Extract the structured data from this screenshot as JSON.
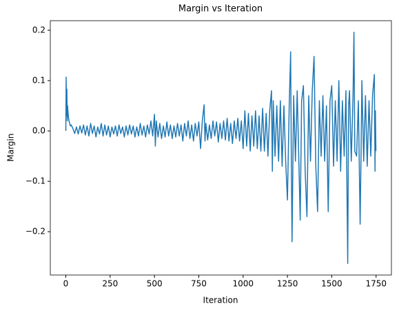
{
  "chart_data": {
    "type": "line",
    "title": "Margin vs Iteration",
    "x_label": "Iteration",
    "y_label": "Margin",
    "x": [
      0,
      2,
      4,
      6,
      8,
      10,
      14,
      18,
      22,
      26,
      30,
      40,
      50,
      60,
      70,
      80,
      90,
      100,
      110,
      120,
      130,
      140,
      150,
      160,
      170,
      180,
      190,
      200,
      210,
      220,
      230,
      240,
      250,
      260,
      270,
      280,
      290,
      300,
      310,
      320,
      330,
      340,
      350,
      360,
      370,
      380,
      390,
      400,
      410,
      420,
      430,
      440,
      450,
      460,
      470,
      480,
      490,
      500,
      505,
      510,
      520,
      530,
      540,
      550,
      560,
      570,
      580,
      590,
      600,
      610,
      620,
      630,
      640,
      650,
      660,
      670,
      680,
      690,
      700,
      710,
      720,
      730,
      740,
      750,
      760,
      770,
      780,
      785,
      790,
      800,
      810,
      820,
      830,
      840,
      850,
      860,
      870,
      880,
      890,
      900,
      910,
      920,
      930,
      940,
      950,
      960,
      970,
      980,
      990,
      1000,
      1010,
      1020,
      1030,
      1040,
      1050,
      1060,
      1070,
      1080,
      1090,
      1100,
      1110,
      1120,
      1130,
      1140,
      1150,
      1160,
      1165,
      1170,
      1180,
      1190,
      1200,
      1210,
      1220,
      1230,
      1240,
      1250,
      1260,
      1268,
      1272,
      1276,
      1285,
      1295,
      1305,
      1315,
      1322,
      1330,
      1340,
      1350,
      1360,
      1370,
      1380,
      1390,
      1400,
      1410,
      1420,
      1430,
      1440,
      1450,
      1460,
      1470,
      1480,
      1490,
      1500,
      1510,
      1520,
      1530,
      1540,
      1550,
      1560,
      1570,
      1580,
      1590,
      1595,
      1600,
      1610,
      1620,
      1625,
      1630,
      1640,
      1650,
      1660,
      1665,
      1670,
      1680,
      1690,
      1700,
      1710,
      1720,
      1730,
      1740,
      1744,
      1746,
      1749
    ],
    "series": [
      {
        "name": "Margin",
        "color": "#1f77b4",
        "values": [
          0.0,
          0.107,
          0.03,
          0.083,
          0.02,
          0.05,
          0.03,
          0.02,
          0.015,
          0.01,
          0.012,
          0.005,
          -0.005,
          0.008,
          -0.006,
          0.01,
          -0.004,
          0.012,
          -0.008,
          0.01,
          -0.01,
          0.015,
          -0.005,
          0.01,
          -0.012,
          0.008,
          -0.006,
          0.015,
          -0.01,
          0.012,
          -0.008,
          0.01,
          -0.012,
          0.008,
          -0.006,
          0.01,
          -0.01,
          0.012,
          -0.005,
          0.008,
          -0.012,
          0.01,
          -0.008,
          0.012,
          -0.006,
          0.01,
          -0.012,
          0.008,
          -0.01,
          0.015,
          -0.008,
          0.01,
          -0.012,
          0.012,
          -0.006,
          0.02,
          -0.01,
          0.033,
          -0.03,
          0.02,
          -0.012,
          0.015,
          -0.015,
          0.01,
          -0.012,
          0.018,
          -0.01,
          0.012,
          -0.015,
          0.01,
          -0.012,
          0.015,
          -0.01,
          0.012,
          -0.02,
          0.015,
          -0.01,
          0.02,
          -0.015,
          0.012,
          -0.02,
          0.015,
          -0.01,
          0.018,
          -0.035,
          0.02,
          0.052,
          -0.02,
          0.015,
          -0.018,
          0.012,
          -0.015,
          0.02,
          -0.01,
          0.018,
          -0.022,
          0.015,
          -0.015,
          0.02,
          -0.018,
          0.025,
          -0.02,
          0.015,
          -0.025,
          0.02,
          -0.015,
          0.025,
          -0.02,
          0.02,
          -0.035,
          0.04,
          -0.03,
          0.035,
          -0.04,
          0.03,
          -0.03,
          0.04,
          -0.035,
          0.03,
          -0.04,
          0.045,
          -0.04,
          0.035,
          -0.05,
          0.04,
          0.08,
          -0.08,
          0.06,
          -0.05,
          0.05,
          -0.06,
          0.06,
          -0.07,
          0.05,
          -0.06,
          -0.137,
          0.05,
          0.157,
          -0.06,
          -0.22,
          0.07,
          -0.06,
          0.08,
          -0.07,
          -0.177,
          0.06,
          0.09,
          -0.08,
          -0.17,
          0.07,
          -0.06,
          0.08,
          0.148,
          -0.07,
          -0.16,
          0.06,
          -0.05,
          0.07,
          -0.06,
          0.05,
          -0.16,
          0.06,
          0.09,
          -0.07,
          0.06,
          -0.06,
          0.1,
          -0.08,
          0.06,
          -0.05,
          0.08,
          -0.263,
          0.05,
          0.08,
          -0.06,
          0.07,
          0.196,
          -0.04,
          -0.05,
          0.06,
          -0.185,
          -0.05,
          0.1,
          -0.06,
          0.07,
          -0.07,
          0.06,
          -0.05,
          0.07,
          0.112,
          -0.08,
          0.04,
          -0.04
        ]
      }
    ],
    "xlim": [
      -87.45,
      1836.45
    ],
    "ylim": [
      -0.286,
      0.219
    ],
    "xticks": [
      0,
      250,
      500,
      750,
      1000,
      1250,
      1500,
      1750
    ],
    "yticks": [
      {
        "value": -0.2,
        "label": "−0.2"
      },
      {
        "value": -0.1,
        "label": "−0.1"
      },
      {
        "value": 0,
        "label": "0.0"
      },
      0.1,
      0.2
    ]
  }
}
